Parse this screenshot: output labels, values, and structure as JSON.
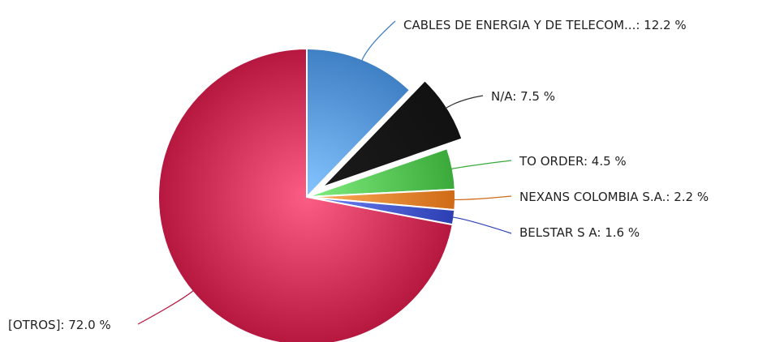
{
  "chart_data": {
    "type": "pie",
    "slices": [
      {
        "label": "CABLES DE ENERGIA Y DE TELECOM...",
        "value": 12.2,
        "color": "#3f7fc4",
        "exploded": false
      },
      {
        "label": "N/A",
        "value": 7.5,
        "color": "#111111",
        "exploded": true
      },
      {
        "label": "TO ORDER",
        "value": 4.5,
        "color": "#3aa93a",
        "exploded": false
      },
      {
        "label": "NEXANS COLOMBIA S.A.",
        "value": 2.2,
        "color": "#cf6a16",
        "exploded": false
      },
      {
        "label": "BELSTAR S A",
        "value": 1.6,
        "color": "#2b3fb3",
        "exploded": false
      },
      {
        "label": "[OTROS]",
        "value": 72.0,
        "color": "#b5173f",
        "exploded": false
      }
    ],
    "label_format": "{label}: {value} %",
    "start_angle": "top",
    "direction": "clockwise"
  }
}
